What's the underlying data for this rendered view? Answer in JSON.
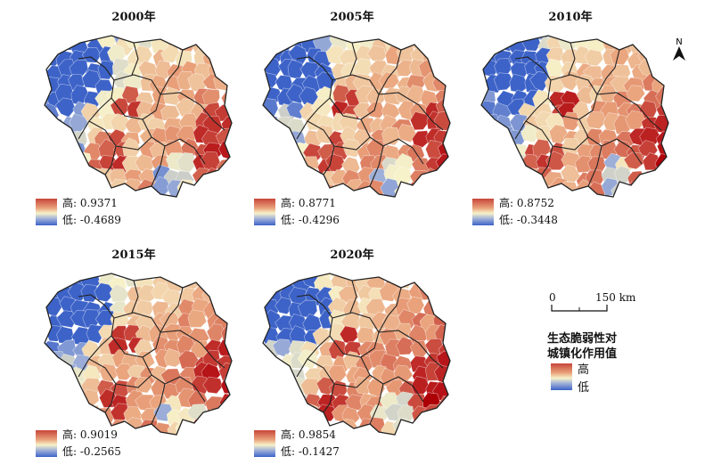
{
  "panels": [
    {
      "title": "2000年",
      "high": "高: 0.9371",
      "low": "低: -0.4689"
    },
    {
      "title": "2005年",
      "high": "高: 0.8771",
      "low": "低: -0.4296"
    },
    {
      "title": "2010年",
      "high": "高: 0.8752",
      "low": "低: -0.3448"
    },
    {
      "title": "2015年",
      "high": "高: 0.9019",
      "low": "低: -0.2565"
    },
    {
      "title": "2020年",
      "high": "高: 0.9854",
      "low": "低: -0.1427"
    }
  ],
  "north_label": "N",
  "scale": {
    "zero": "0",
    "end": "150 km"
  },
  "legend": {
    "title_line1": "生态脆弱性对",
    "title_line2": "城镇化作用值",
    "high": "高",
    "low": "低"
  },
  "colors": {
    "high": "#c8453a",
    "mid": "#f7f2c9",
    "low": "#3d63c8",
    "neutral": "#c9ccc9"
  }
}
